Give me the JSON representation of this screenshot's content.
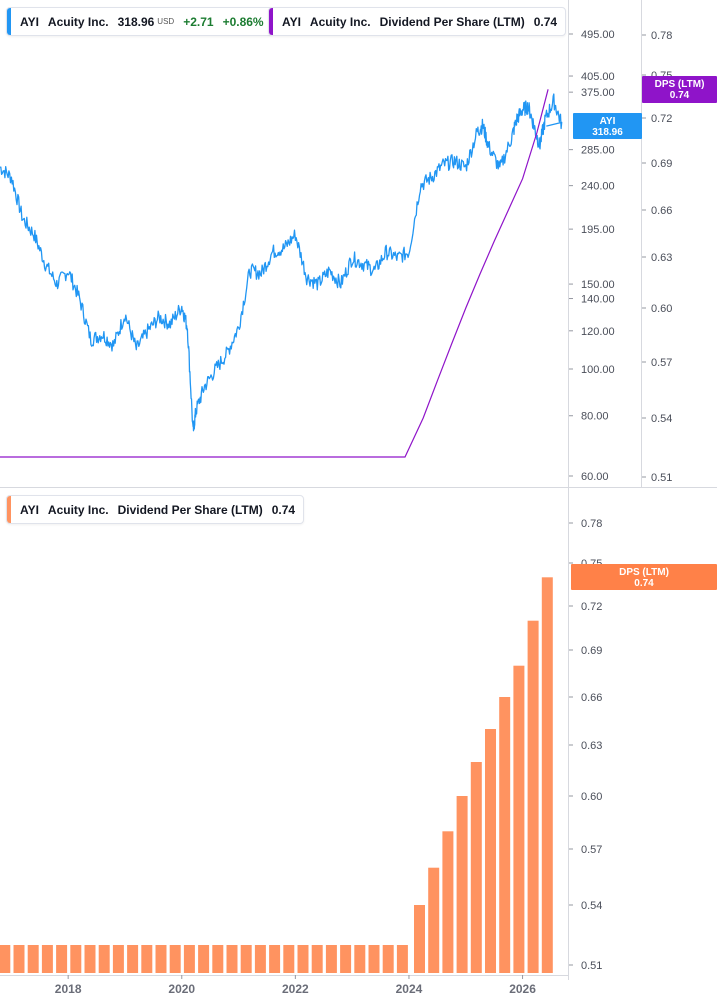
{
  "colors": {
    "price_line": "#2196f3",
    "dps_line": "#8f14c9",
    "bar": "#ff9360",
    "price_badge": "#2196f3",
    "dps_badge_top": "#8f14c9",
    "dps_badge_bottom": "#ff8148",
    "positive": "#1c7c31",
    "grid_divider": "#d7d9df",
    "axis_text": "#4a4e59"
  },
  "legend_price": {
    "ticker": "AYI",
    "name": "Acuity Inc.",
    "price": "318.96",
    "currency": "USD",
    "change": "+2.71",
    "change_pct": "+0.86%"
  },
  "legend_dps_top": {
    "ticker": "AYI",
    "name": "Acuity Inc.",
    "metric": "Dividend Per Share (LTM)",
    "value": "0.74"
  },
  "legend_dps_bottom": {
    "ticker": "AYI",
    "name": "Acuity Inc.",
    "metric": "Dividend Per Share (LTM)",
    "value": "0.74"
  },
  "badges": {
    "price": {
      "label": "AYI",
      "value": "318.96"
    },
    "dps_top": {
      "label": "DPS (LTM)",
      "value": "0.74"
    },
    "dps_bottom": {
      "label": "DPS (LTM)",
      "value": "0.74"
    }
  },
  "chart_data": [
    {
      "type": "line",
      "title": "",
      "description_series": "price",
      "y_scale": "log",
      "ylim": [
        58,
        600
      ],
      "xlim": [
        2016.8,
        2026.8
      ],
      "y_ticks": [
        "495.00",
        "405.00",
        "375.00",
        "285.00",
        "240.00",
        "195.00",
        "150.00",
        "140.00",
        "120.00",
        "100.00",
        "80.00",
        "60.00"
      ],
      "y_tick_values": [
        495,
        405,
        375,
        285,
        240,
        195,
        150,
        140,
        120,
        100,
        80,
        60
      ],
      "series": [
        {
          "name": "AYI",
          "x": [
            2016.8,
            2017.0,
            2017.2,
            2017.4,
            2017.6,
            2017.8,
            2018.0,
            2018.2,
            2018.4,
            2018.6,
            2018.8,
            2019.0,
            2019.2,
            2019.4,
            2019.6,
            2019.8,
            2020.0,
            2020.1,
            2020.2,
            2020.25,
            2020.4,
            2020.6,
            2020.8,
            2021.0,
            2021.2,
            2021.4,
            2021.6,
            2021.8,
            2022.0,
            2022.2,
            2022.4,
            2022.6,
            2022.8,
            2023.0,
            2023.2,
            2023.4,
            2023.6,
            2023.8,
            2024.0,
            2024.2,
            2024.4,
            2024.6,
            2024.8,
            2025.0,
            2025.2,
            2025.3,
            2025.4,
            2025.6,
            2025.8,
            2025.9,
            2026.0,
            2026.1,
            2026.2,
            2026.3,
            2026.4,
            2026.55,
            2026.7
          ],
          "values": [
            262,
            250,
            205,
            190,
            165,
            150,
            160,
            140,
            115,
            118,
            112,
            130,
            110,
            120,
            128,
            124,
            135,
            122,
            74,
            82,
            92,
            100,
            108,
            122,
            160,
            158,
            175,
            178,
            190,
            155,
            150,
            160,
            150,
            170,
            165,
            160,
            175,
            170,
            175,
            240,
            250,
            265,
            270,
            262,
            310,
            320,
            290,
            260,
            300,
            330,
            345,
            350,
            320,
            290,
            330,
            360,
            318.96
          ]
        }
      ]
    },
    {
      "type": "line",
      "title": "",
      "description_series": "dividend per share (right axis)",
      "ylim": [
        0.505,
        0.79
      ],
      "y_ticks": [
        "0.78",
        "0.75",
        "0.72",
        "0.69",
        "0.66",
        "0.63",
        "0.60",
        "0.57",
        "0.54",
        "0.51"
      ],
      "y_tick_values": [
        0.78,
        0.75,
        0.72,
        0.69,
        0.66,
        0.63,
        0.6,
        0.57,
        0.54,
        0.51
      ],
      "series": [
        {
          "name": "Dividend Per Share (LTM)",
          "x": [
            2016.8,
            2024.0,
            2024.25,
            2024.5,
            2024.75,
            2025.0,
            2025.25,
            2025.5,
            2025.75,
            2026.0,
            2026.25,
            2026.45
          ],
          "values": [
            0.52,
            0.52,
            0.54,
            0.56,
            0.58,
            0.6,
            0.62,
            0.64,
            0.66,
            0.68,
            0.71,
            0.74
          ]
        }
      ]
    },
    {
      "type": "bar",
      "title": "",
      "xlim": [
        2016.8,
        2026.8
      ],
      "ylim": [
        0.505,
        0.79
      ],
      "x_ticks": [
        "2018",
        "2020",
        "2022",
        "2024",
        "2026"
      ],
      "x_tick_values": [
        2018,
        2020,
        2022,
        2024,
        2026
      ],
      "y_ticks": [
        "0.78",
        "0.75",
        "0.72",
        "0.69",
        "0.66",
        "0.63",
        "0.60",
        "0.57",
        "0.54",
        "0.51"
      ],
      "y_tick_values": [
        0.78,
        0.75,
        0.72,
        0.69,
        0.66,
        0.63,
        0.6,
        0.57,
        0.54,
        0.51
      ],
      "series": [
        {
          "name": "Dividend Per Share (LTM)",
          "x": [
            2016.85,
            2017.1,
            2017.35,
            2017.6,
            2017.85,
            2018.1,
            2018.35,
            2018.6,
            2018.85,
            2019.1,
            2019.35,
            2019.6,
            2019.85,
            2020.1,
            2020.35,
            2020.6,
            2020.85,
            2021.1,
            2021.35,
            2021.6,
            2021.85,
            2022.1,
            2022.35,
            2022.6,
            2022.85,
            2023.1,
            2023.35,
            2023.6,
            2023.85,
            2024.15,
            2024.4,
            2024.65,
            2024.9,
            2025.15,
            2025.4,
            2025.65,
            2025.9,
            2026.15,
            2026.4
          ],
          "values": [
            0.52,
            0.52,
            0.52,
            0.52,
            0.52,
            0.52,
            0.52,
            0.52,
            0.52,
            0.52,
            0.52,
            0.52,
            0.52,
            0.52,
            0.52,
            0.52,
            0.52,
            0.52,
            0.52,
            0.52,
            0.52,
            0.52,
            0.52,
            0.52,
            0.52,
            0.52,
            0.52,
            0.52,
            0.52,
            0.54,
            0.56,
            0.58,
            0.6,
            0.62,
            0.64,
            0.66,
            0.68,
            0.71,
            0.74
          ]
        }
      ]
    }
  ]
}
